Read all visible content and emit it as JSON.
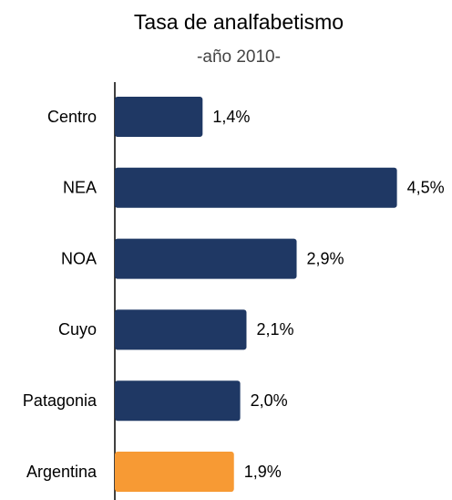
{
  "chart_data": {
    "type": "bar",
    "orientation": "horizontal",
    "title": "Tasa de analfabetismo",
    "subtitle": "-año 2010-",
    "categories": [
      "Centro",
      "NEA",
      "NOA",
      "Cuyo",
      "Patagonia",
      "Argentina"
    ],
    "values": [
      1.4,
      4.5,
      2.9,
      2.1,
      2.0,
      1.9
    ],
    "value_labels": [
      "1,4%",
      "4,5%",
      "2,9%",
      "2,1%",
      "2,0%",
      "1,9%"
    ],
    "colors": [
      "#1f3864",
      "#1f3864",
      "#1f3864",
      "#1f3864",
      "#1f3864",
      "#f79a34"
    ],
    "xlim": [
      0,
      5
    ]
  }
}
